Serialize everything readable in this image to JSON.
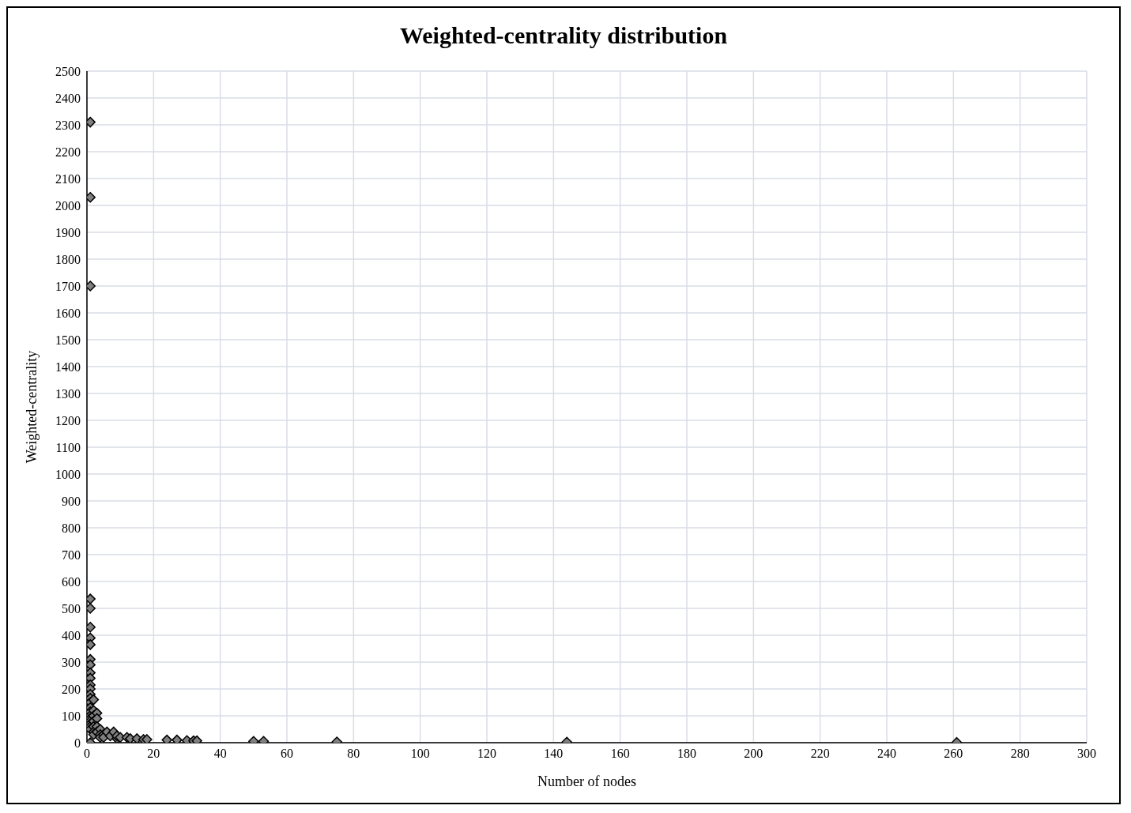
{
  "chart_data": {
    "type": "scatter",
    "title": "Weighted-centrality distribution",
    "xlabel": "Number of nodes",
    "ylabel": "Weighted-centrality",
    "x": [
      1,
      1,
      1,
      1,
      1,
      1,
      1,
      1,
      1,
      1,
      1,
      1,
      1,
      1,
      1,
      1,
      1,
      1,
      1,
      1,
      1,
      1,
      1,
      1,
      1,
      1,
      2,
      2,
      2,
      2,
      2,
      2,
      2,
      3,
      3,
      3,
      3,
      4,
      4,
      4,
      5,
      5,
      6,
      7,
      8,
      9,
      9,
      10,
      12,
      13,
      15,
      17,
      18,
      24,
      27,
      30,
      32,
      33,
      50,
      53,
      75,
      144,
      261
    ],
    "values": [
      2310,
      2030,
      1700,
      535,
      500,
      430,
      390,
      365,
      310,
      290,
      260,
      240,
      215,
      200,
      180,
      165,
      150,
      130,
      115,
      100,
      90,
      80,
      70,
      60,
      50,
      0,
      160,
      120,
      100,
      80,
      60,
      40,
      30,
      110,
      90,
      60,
      40,
      50,
      30,
      20,
      30,
      20,
      40,
      25,
      40,
      15,
      25,
      20,
      20,
      15,
      15,
      12,
      12,
      10,
      10,
      8,
      7,
      7,
      5,
      5,
      3,
      2,
      1
    ],
    "color": "#808080",
    "marker": "diamond",
    "xlim": [
      0,
      300
    ],
    "xticks": [
      0,
      20,
      40,
      60,
      80,
      100,
      120,
      140,
      160,
      180,
      200,
      220,
      240,
      260,
      280,
      300
    ],
    "ylim": [
      0,
      2500
    ],
    "yticks": [
      0,
      100,
      200,
      300,
      400,
      500,
      600,
      700,
      800,
      900,
      1000,
      1100,
      1200,
      1300,
      1400,
      1500,
      1600,
      1700,
      1800,
      1900,
      2000,
      2100,
      2200,
      2300,
      2400,
      2500
    ],
    "grid": true,
    "legend": false
  }
}
